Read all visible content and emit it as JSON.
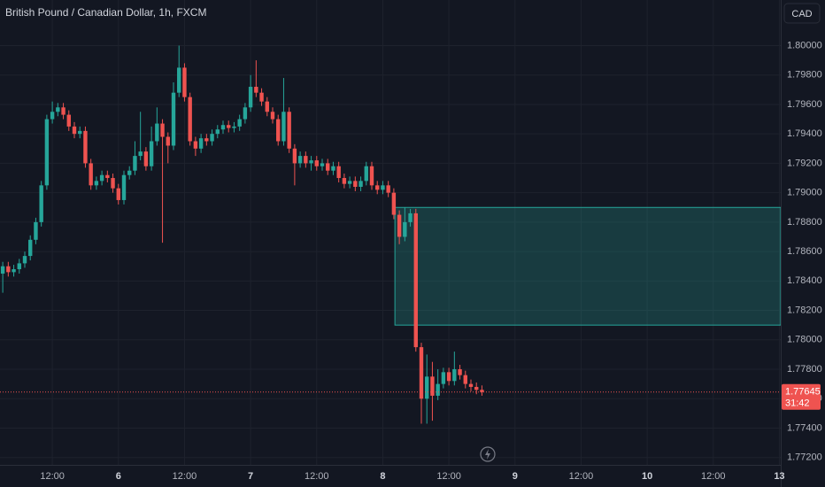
{
  "chart_data": {
    "type": "candlestick",
    "title": "British Pound / Canadian Dollar, 1h, FXCM",
    "currency": "CAD",
    "countdown": "31:42",
    "up_color": "#26a69a",
    "down_color": "#ef5350",
    "grid": true,
    "xlim": [
      2.5,
      144.25
    ],
    "xticks": [
      {
        "value": 12,
        "label": "12:00"
      },
      {
        "value": 24,
        "label": "6"
      },
      {
        "value": 36,
        "label": "12:00"
      },
      {
        "value": 48,
        "label": "7"
      },
      {
        "value": 60,
        "label": "12:00"
      },
      {
        "value": 72,
        "label": "8"
      },
      {
        "value": 84,
        "label": "12:00"
      },
      {
        "value": 96,
        "label": "9"
      },
      {
        "value": 108,
        "label": "12:00"
      },
      {
        "value": 120,
        "label": "10"
      },
      {
        "value": 132,
        "label": "12:00"
      },
      {
        "value": 144,
        "label": "13"
      }
    ],
    "ylim": [
      1.7715,
      1.8031
    ],
    "yticks": [
      {
        "value": 1.772,
        "label": "1.77200"
      },
      {
        "value": 1.774,
        "label": "1.77400"
      },
      {
        "value": 1.776,
        "label": "1.77600"
      },
      {
        "value": 1.778,
        "label": "1.77800"
      },
      {
        "value": 1.78,
        "label": "1.78000"
      },
      {
        "value": 1.782,
        "label": "1.78200"
      },
      {
        "value": 1.784,
        "label": "1.78400"
      },
      {
        "value": 1.786,
        "label": "1.78600"
      },
      {
        "value": 1.788,
        "label": "1.78800"
      },
      {
        "value": 1.79,
        "label": "1.79000"
      },
      {
        "value": 1.792,
        "label": "1.79200"
      },
      {
        "value": 1.794,
        "label": "1.79400"
      },
      {
        "value": 1.796,
        "label": "1.79600"
      },
      {
        "value": 1.798,
        "label": "1.79800"
      },
      {
        "value": 1.8,
        "label": "1.80000"
      }
    ],
    "zone": {
      "x0": 74.2,
      "top": 1.789,
      "bottom": 1.781,
      "color": "#26a69a"
    },
    "x": [
      3,
      4,
      5,
      6,
      7,
      8,
      9,
      10,
      11,
      12,
      13,
      14,
      15,
      16,
      17,
      18,
      19,
      20,
      21,
      22,
      23,
      24,
      25,
      26,
      27,
      28,
      29,
      30,
      31,
      32,
      33,
      34,
      35,
      36,
      37,
      38,
      39,
      40,
      41,
      42,
      43,
      44,
      45,
      46,
      47,
      48,
      49,
      50,
      51,
      52,
      53,
      54,
      55,
      56,
      57,
      58,
      59,
      60,
      61,
      62,
      63,
      64,
      65,
      66,
      67,
      68,
      69,
      70,
      71,
      72,
      73,
      74,
      75,
      76,
      77,
      78,
      79,
      80,
      81,
      82,
      83,
      84,
      85,
      86,
      87,
      88,
      89,
      90
    ],
    "open": [
      1.7845,
      1.785,
      1.7846,
      1.7848,
      1.7852,
      1.7857,
      1.7868,
      1.788,
      1.7905,
      1.795,
      1.7955,
      1.7958,
      1.7953,
      1.7945,
      1.794,
      1.7942,
      1.792,
      1.7905,
      1.7908,
      1.7912,
      1.791,
      1.7903,
      1.7895,
      1.7912,
      1.7915,
      1.7925,
      1.7928,
      1.7918,
      1.7935,
      1.7947,
      1.7938,
      1.7932,
      1.7968,
      1.7985,
      1.7965,
      1.7935,
      1.793,
      1.7937,
      1.7935,
      1.794,
      1.7943,
      1.7946,
      1.7944,
      1.7945,
      1.795,
      1.7958,
      1.7972,
      1.7968,
      1.7962,
      1.7955,
      1.795,
      1.7935,
      1.7955,
      1.793,
      1.792,
      1.7925,
      1.792,
      1.7922,
      1.7918,
      1.792,
      1.7915,
      1.7918,
      1.791,
      1.7906,
      1.7908,
      1.7904,
      1.7908,
      1.7918,
      1.7905,
      1.7902,
      1.7905,
      1.79,
      1.7885,
      1.787,
      1.788,
      1.7886,
      1.7795,
      1.776,
      1.7775,
      1.7762,
      1.777,
      1.7778,
      1.7772,
      1.778,
      1.7776,
      1.777,
      1.7768,
      1.7766
    ],
    "high": [
      1.7853,
      1.7853,
      1.7851,
      1.7855,
      1.786,
      1.7871,
      1.7883,
      1.7908,
      1.7953,
      1.7962,
      1.7961,
      1.7961,
      1.7956,
      1.7948,
      1.7945,
      1.7945,
      1.7923,
      1.7911,
      1.7915,
      1.7915,
      1.7913,
      1.7906,
      1.7915,
      1.7918,
      1.7935,
      1.7955,
      1.7931,
      1.7945,
      1.7958,
      1.795,
      1.7941,
      1.7975,
      1.8,
      1.7988,
      1.7968,
      1.7938,
      1.794,
      1.794,
      1.7943,
      1.7946,
      1.7949,
      1.7949,
      1.7948,
      1.7953,
      1.7961,
      1.798,
      1.799,
      1.7971,
      1.7965,
      1.7958,
      1.7953,
      1.7978,
      1.7958,
      1.7933,
      1.7928,
      1.7928,
      1.7925,
      1.7925,
      1.7923,
      1.7923,
      1.7921,
      1.7921,
      1.7913,
      1.7911,
      1.7911,
      1.7911,
      1.7921,
      1.7921,
      1.7908,
      1.7908,
      1.7908,
      1.7903,
      1.7888,
      1.789,
      1.7889,
      1.7889,
      1.7798,
      1.779,
      1.7785,
      1.778,
      1.7781,
      1.7781,
      1.7792,
      1.7783,
      1.7779,
      1.7773,
      1.7771,
      1.7769
    ],
    "low": [
      1.7832,
      1.7843,
      1.7843,
      1.7845,
      1.7849,
      1.7854,
      1.7865,
      1.7877,
      1.7902,
      1.7947,
      1.7952,
      1.795,
      1.7942,
      1.7937,
      1.7937,
      1.7917,
      1.7902,
      1.7902,
      1.7905,
      1.7907,
      1.79,
      1.7892,
      1.7892,
      1.7909,
      1.7912,
      1.7922,
      1.7915,
      1.7915,
      1.7932,
      1.7866,
      1.792,
      1.7929,
      1.7965,
      1.7962,
      1.7932,
      1.7925,
      1.7927,
      1.7932,
      1.7932,
      1.7937,
      1.794,
      1.7941,
      1.7941,
      1.7942,
      1.7947,
      1.7955,
      1.7965,
      1.7959,
      1.7952,
      1.7947,
      1.7932,
      1.7932,
      1.7927,
      1.7905,
      1.7917,
      1.7917,
      1.7915,
      1.7915,
      1.7915,
      1.7912,
      1.7912,
      1.7907,
      1.7903,
      1.7903,
      1.7901,
      1.7901,
      1.7905,
      1.7902,
      1.7899,
      1.7899,
      1.7897,
      1.7882,
      1.7865,
      1.7867,
      1.7877,
      1.7792,
      1.7743,
      1.7743,
      1.7745,
      1.7759,
      1.7767,
      1.7769,
      1.7769,
      1.7773,
      1.7767,
      1.7765,
      1.7763,
      1.7762
    ],
    "close": [
      1.785,
      1.7846,
      1.7848,
      1.7852,
      1.7857,
      1.7868,
      1.788,
      1.7905,
      1.795,
      1.7955,
      1.7958,
      1.7953,
      1.7945,
      1.794,
      1.7942,
      1.792,
      1.7905,
      1.7908,
      1.7912,
      1.791,
      1.7903,
      1.7895,
      1.7912,
      1.7915,
      1.7925,
      1.7928,
      1.7918,
      1.7935,
      1.7947,
      1.7938,
      1.7932,
      1.7968,
      1.7985,
      1.7965,
      1.7935,
      1.793,
      1.7937,
      1.7935,
      1.794,
      1.7943,
      1.7946,
      1.7944,
      1.7945,
      1.795,
      1.7958,
      1.7972,
      1.7968,
      1.7962,
      1.7955,
      1.795,
      1.7935,
      1.7955,
      1.793,
      1.792,
      1.7925,
      1.792,
      1.7922,
      1.7918,
      1.792,
      1.7915,
      1.7918,
      1.791,
      1.7906,
      1.7908,
      1.7904,
      1.7908,
      1.7918,
      1.7905,
      1.7902,
      1.7905,
      1.79,
      1.7885,
      1.787,
      1.788,
      1.7886,
      1.7795,
      1.776,
      1.7775,
      1.7762,
      1.777,
      1.7778,
      1.7772,
      1.778,
      1.7776,
      1.777,
      1.7768,
      1.7766,
      1.77645
    ]
  }
}
